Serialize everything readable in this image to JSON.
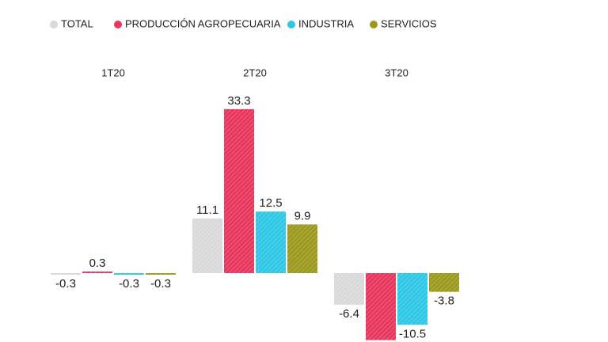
{
  "chart_data": {
    "type": "bar",
    "categories": [
      "1T20",
      "2T20",
      "3T20"
    ],
    "series": [
      {
        "name": "TOTAL",
        "color": "#d9d9d9",
        "values": [
          -0.3,
          11.1,
          -6.4
        ]
      },
      {
        "name": "PRODUCCIÓN AGROPECUARIA",
        "color": "#e8365d",
        "values": [
          0.3,
          33.3,
          -13.6
        ]
      },
      {
        "name": "INDUSTRIA",
        "color": "#2ec8e6",
        "values": [
          -0.3,
          12.5,
          -10.5
        ]
      },
      {
        "name": "SERVICIOS",
        "color": "#9c9a1e",
        "values": [
          -0.3,
          9.9,
          -3.8
        ]
      }
    ]
  }
}
